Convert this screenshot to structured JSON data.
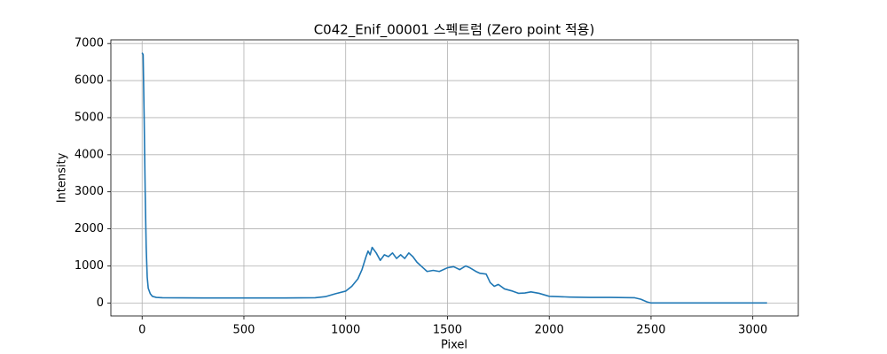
{
  "chart_data": {
    "type": "line",
    "title": "C042_Enif_00001 스펙트럼 (Zero point 적용)",
    "xlabel": "Pixel",
    "ylabel": "Intensity",
    "xlim": [
      -153.5,
      3223.5
    ],
    "xticks": [
      0,
      500,
      1000,
      1500,
      2000,
      2500,
      3000
    ],
    "ylim": [
      -350,
      7100
    ],
    "yticks": [
      0,
      1000,
      2000,
      3000,
      4000,
      5000,
      6000,
      7000
    ],
    "grid": true,
    "series": [
      {
        "name": "Intensity",
        "color": "#1f77b4",
        "x": [
          0,
          5,
          10,
          15,
          20,
          25,
          30,
          40,
          50,
          70,
          100,
          300,
          500,
          700,
          850,
          900,
          950,
          1000,
          1030,
          1060,
          1080,
          1100,
          1110,
          1120,
          1130,
          1150,
          1170,
          1190,
          1210,
          1230,
          1250,
          1270,
          1290,
          1310,
          1330,
          1350,
          1380,
          1400,
          1430,
          1460,
          1500,
          1530,
          1560,
          1590,
          1610,
          1640,
          1660,
          1690,
          1710,
          1730,
          1750,
          1780,
          1820,
          1850,
          1880,
          1910,
          1950,
          2000,
          2100,
          2200,
          2300,
          2420,
          2450,
          2480,
          2500,
          3070
        ],
        "values": [
          6750,
          6700,
          5000,
          3000,
          1500,
          700,
          400,
          250,
          180,
          150,
          140,
          135,
          135,
          135,
          140,
          170,
          250,
          320,
          450,
          650,
          900,
          1250,
          1400,
          1300,
          1500,
          1350,
          1150,
          1300,
          1250,
          1350,
          1200,
          1300,
          1200,
          1350,
          1250,
          1100,
          950,
          850,
          880,
          850,
          950,
          980,
          900,
          1000,
          950,
          850,
          800,
          780,
          550,
          450,
          500,
          380,
          320,
          260,
          270,
          300,
          260,
          180,
          160,
          150,
          150,
          140,
          100,
          30,
          0,
          0
        ]
      }
    ]
  }
}
